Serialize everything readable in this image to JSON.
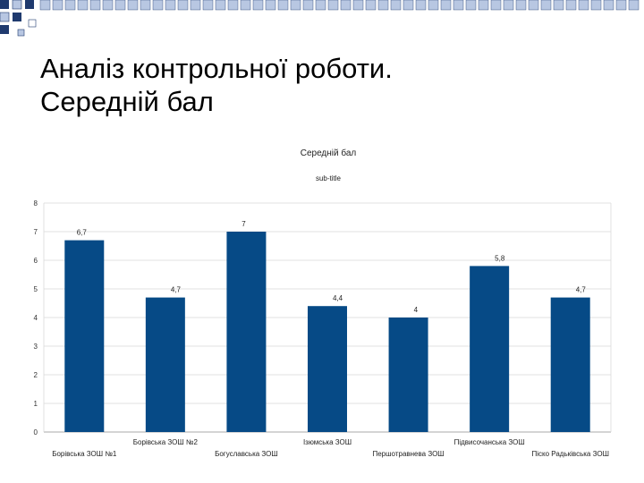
{
  "slide": {
    "title_line1": "Аналіз контрольної роботи.",
    "title_line2": "Середній бал"
  },
  "colors": {
    "bar": "#064a86",
    "deco_dark": "#1f3a6e",
    "deco_light": "#b8c7e2",
    "grid": "#d9d9d9",
    "axis": "#8c8c8c"
  },
  "chart_data": {
    "type": "bar",
    "title": "Середній бал",
    "subtitle": "sub-title",
    "xlabel": "",
    "ylabel": "",
    "ylim": [
      0,
      8
    ],
    "yticks": [
      "0",
      "1",
      "2",
      "3",
      "4",
      "5",
      "6",
      "7",
      "8"
    ],
    "grid": "horizontal",
    "legend": "none",
    "categories": [
      "Борівська ЗОШ №1",
      "Борівська ЗОШ №2",
      "Богуславська ЗОШ",
      "Ізюмська ЗОШ",
      "Першотравнева ЗОШ",
      "Підвисочанська ЗОШ",
      "Піско Радьківська ЗОШ"
    ],
    "values": [
      6.7,
      4.7,
      7,
      4.4,
      4,
      5.8,
      4.7
    ],
    "value_labels": [
      "6,7",
      "4,7",
      "7",
      "4,4",
      "4",
      "5,8",
      "4,7"
    ]
  }
}
